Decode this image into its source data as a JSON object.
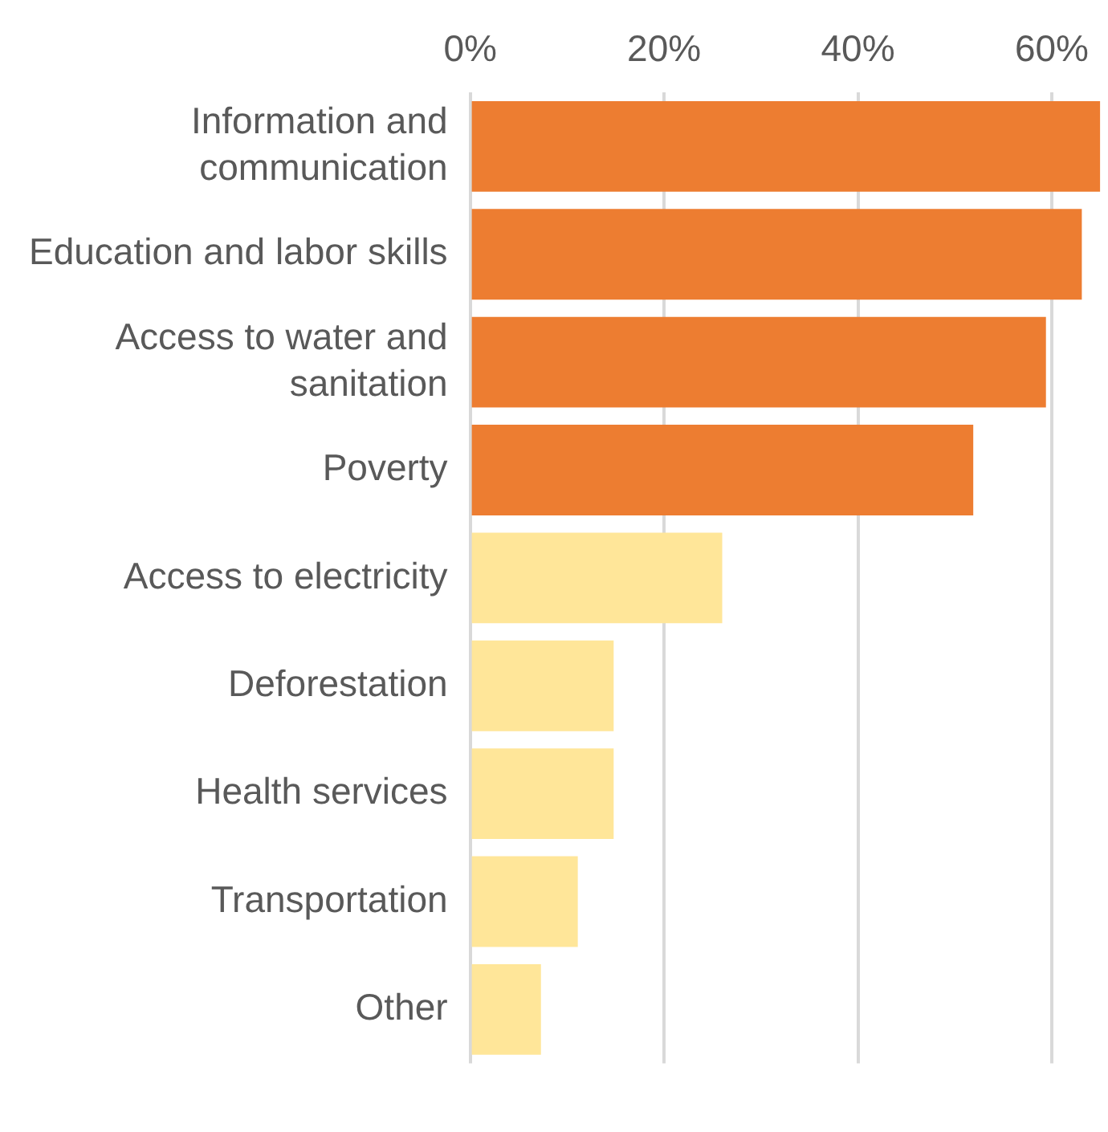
{
  "chart_data": {
    "type": "bar",
    "orientation": "horizontal",
    "categories": [
      "Information and communication",
      "Education and labor skills",
      "Access to water and sanitation",
      "Poverty",
      "Access to electricity",
      "Deforestation",
      "Health services",
      "Transportation",
      "Other"
    ],
    "values": [
      65,
      63.1,
      59.4,
      51.9,
      26,
      14.8,
      14.8,
      11.1,
      7.3
    ],
    "colors": [
      "#ed7d31",
      "#ed7d31",
      "#ed7d31",
      "#ed7d31",
      "#ffe699",
      "#ffe699",
      "#ffe699",
      "#ffe699",
      "#ffe699"
    ],
    "xlim": [
      0,
      65
    ],
    "xticks": [
      {
        "value": 0,
        "label": "0%"
      },
      {
        "value": 20,
        "label": "20%"
      },
      {
        "value": 40,
        "label": "40%"
      },
      {
        "value": 60,
        "label": "60%"
      }
    ],
    "grid": "x",
    "legend": false
  }
}
